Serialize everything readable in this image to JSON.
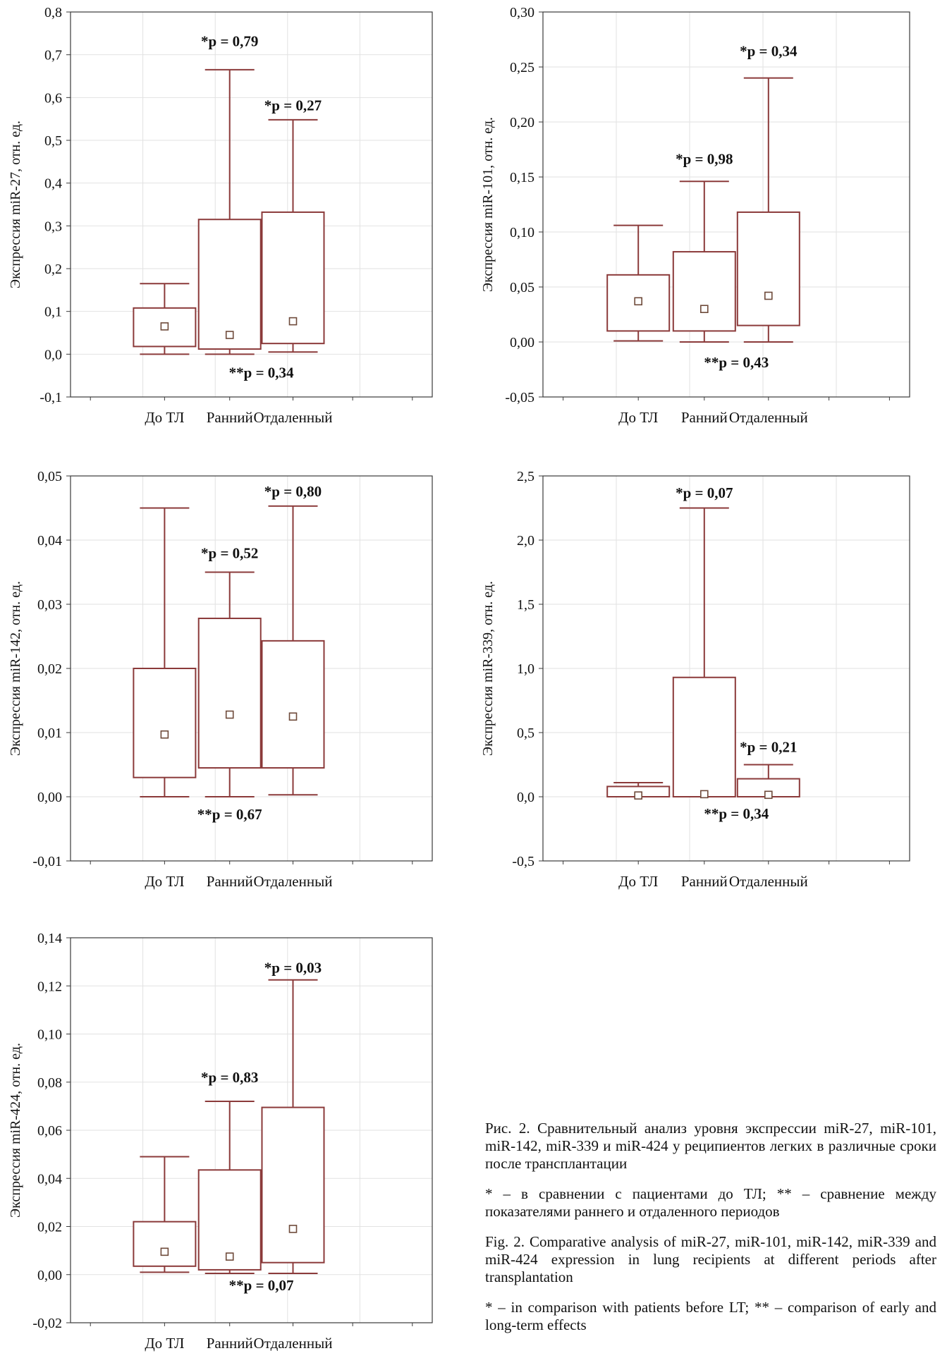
{
  "chart_data": [
    {
      "type": "box",
      "title": "",
      "xlabel": "",
      "ylabel": "Экспрессия miR-27, отн. ед.",
      "ylim": [
        -0.1,
        0.8
      ],
      "yticks": [
        "-0,1",
        "0,0",
        "0,1",
        "0,2",
        "0,3",
        "0,4",
        "0,5",
        "0,6",
        "0,7",
        "0,8"
      ],
      "categories": [
        "До ТЛ",
        "Ранний",
        "Отдаленный"
      ],
      "boxes": [
        {
          "min": 0.0,
          "q1": 0.018,
          "median": 0.065,
          "q3": 0.108,
          "max": 0.165
        },
        {
          "min": 0.0,
          "q1": 0.012,
          "median": 0.045,
          "q3": 0.315,
          "max": 0.665
        },
        {
          "min": 0.005,
          "q1": 0.025,
          "median": 0.077,
          "q3": 0.332,
          "max": 0.548
        }
      ],
      "annotations": [
        {
          "text": "*p = 0,79",
          "category": 1,
          "y": 0.72,
          "color": "#111111"
        },
        {
          "text": "*p = 0,27",
          "category": 2,
          "y": 0.57,
          "color": "#111111"
        },
        {
          "text": "**p = 0,34",
          "category": 1.5,
          "y": -0.055,
          "color": "#111111"
        }
      ]
    },
    {
      "type": "box",
      "title": "",
      "xlabel": "",
      "ylabel": "Экспрессия miR-101, отн. ед.",
      "ylim": [
        -0.05,
        0.3
      ],
      "yticks": [
        "-0,05",
        "0,00",
        "0,05",
        "0,10",
        "0,15",
        "0,20",
        "0,25",
        "0,30"
      ],
      "categories": [
        "До ТЛ",
        "Ранний",
        "Отдаленный"
      ],
      "boxes": [
        {
          "min": 0.001,
          "q1": 0.01,
          "median": 0.037,
          "q3": 0.061,
          "max": 0.106
        },
        {
          "min": 0.0,
          "q1": 0.01,
          "median": 0.03,
          "q3": 0.082,
          "max": 0.146
        },
        {
          "min": 0.0,
          "q1": 0.015,
          "median": 0.042,
          "q3": 0.118,
          "max": 0.24
        }
      ],
      "annotations": [
        {
          "text": "*p = 0,34",
          "category": 2,
          "y": 0.26,
          "color": "#111111"
        },
        {
          "text": "*p = 0,98",
          "category": 1,
          "y": 0.162,
          "color": "#111111"
        },
        {
          "text": "**p = 0,43",
          "category": 1.5,
          "y": -0.023,
          "color": "#111111"
        }
      ]
    },
    {
      "type": "box",
      "title": "",
      "xlabel": "",
      "ylabel": "Экспрессия miR-142, отн. ед.",
      "ylim": [
        -0.01,
        0.05
      ],
      "yticks": [
        "-0,01",
        "0,00",
        "0,01",
        "0,02",
        "0,03",
        "0,04",
        "0,05"
      ],
      "categories": [
        "До ТЛ",
        "Ранний",
        "Отдаленный"
      ],
      "boxes": [
        {
          "min": 0.0,
          "q1": 0.003,
          "median": 0.0097,
          "q3": 0.02,
          "max": 0.045
        },
        {
          "min": 0.0,
          "q1": 0.0045,
          "median": 0.0128,
          "q3": 0.0278,
          "max": 0.035
        },
        {
          "min": 0.0003,
          "q1": 0.0045,
          "median": 0.0125,
          "q3": 0.0243,
          "max": 0.0453
        }
      ],
      "annotations": [
        {
          "text": "*p = 0,80",
          "category": 2,
          "y": 0.0468,
          "color": "#111111"
        },
        {
          "text": "*p = 0,52",
          "category": 1,
          "y": 0.0372,
          "color": "#111111"
        },
        {
          "text": "**p = 0,67",
          "category": 1,
          "y": -0.0035,
          "color": "#111111"
        }
      ]
    },
    {
      "type": "box",
      "title": "",
      "xlabel": "",
      "ylabel": "Экспрессия miR-339, отн. ед.",
      "ylim": [
        -0.5,
        2.5
      ],
      "yticks": [
        "-0,5",
        "0,0",
        "0,5",
        "1,0",
        "1,5",
        "2,0",
        "2,5"
      ],
      "categories": [
        "До ТЛ",
        "Ранний",
        "Отдаленный"
      ],
      "boxes": [
        {
          "min": 0.0,
          "q1": 0.0,
          "median": 0.01,
          "q3": 0.08,
          "max": 0.11
        },
        {
          "min": 0.0,
          "q1": 0.0,
          "median": 0.02,
          "q3": 0.93,
          "max": 2.25
        },
        {
          "min": 0.0,
          "q1": 0.0,
          "median": 0.015,
          "q3": 0.14,
          "max": 0.25
        }
      ],
      "annotations": [
        {
          "text": "*p = 0,07",
          "category": 1,
          "y": 2.33,
          "color": "#111111"
        },
        {
          "text": "*p = 0,21",
          "category": 2,
          "y": 0.35,
          "color": "#111111"
        },
        {
          "text": "**p = 0,34",
          "category": 1.5,
          "y": -0.17,
          "color": "#111111"
        }
      ]
    },
    {
      "type": "box",
      "title": "",
      "xlabel": "",
      "ylabel": "Экспрессия miR-424, отн. ед.",
      "ylim": [
        -0.02,
        0.14
      ],
      "yticks": [
        "-0,02",
        "0,00",
        "0,02",
        "0,04",
        "0,06",
        "0,08",
        "0,10",
        "0,12",
        "0,14"
      ],
      "categories": [
        "До ТЛ",
        "Ранний",
        "Отдаленный"
      ],
      "boxes": [
        {
          "min": 0.001,
          "q1": 0.0035,
          "median": 0.0095,
          "q3": 0.022,
          "max": 0.049
        },
        {
          "min": 0.0005,
          "q1": 0.002,
          "median": 0.0075,
          "q3": 0.0435,
          "max": 0.072
        },
        {
          "min": 0.0005,
          "q1": 0.005,
          "median": 0.019,
          "q3": 0.0695,
          "max": 0.1225
        }
      ],
      "annotations": [
        {
          "text": "*p = 0,03",
          "category": 2,
          "y": 0.1255,
          "color": "#e02020"
        },
        {
          "text": "*p = 0,83",
          "category": 1,
          "y": 0.08,
          "color": "#111111"
        },
        {
          "text": "**p = 0,07",
          "category": 1.5,
          "y": -0.0065,
          "color": "#111111"
        }
      ]
    }
  ],
  "caption": {
    "ru_title": "Рис. 2. Сравнительный анализ уровня экспрессии miR-27, miR-101, miR-142, miR-339 и miR-424 у реципиентов легких в различные сроки после трансплантации",
    "ru_note": "* – в сравнении с пациентами до ТЛ; ** – сравнение между показателями раннего и отдаленного периодов",
    "en_title": "Fig. 2. Comparative analysis of miR-27, miR-101, miR-142, miR-339 and miR-424 expression in lung recipients at different periods after transplantation",
    "en_note": "* – in comparison with patients before LT; ** – comparison of early and long-term effects"
  }
}
